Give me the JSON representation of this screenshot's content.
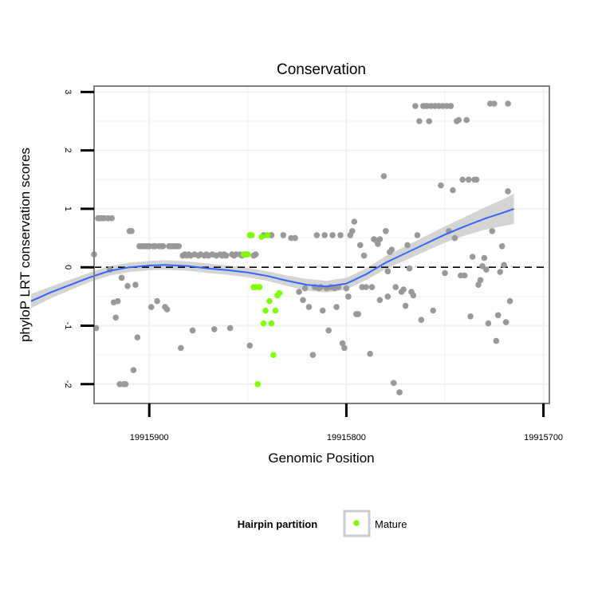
{
  "chart_data": {
    "type": "scatter",
    "title": "Conservation",
    "xlabel": "Genomic Position",
    "ylabel": "phyloP LRT conservation scores",
    "xlim": [
      19915928,
      19915697
    ],
    "ylim": [
      -2.33,
      3.1
    ],
    "x_ticks": [
      19915900,
      19915800,
      19915700
    ],
    "x_tick_labels": [
      "19915900",
      "19915800",
      "19915700"
    ],
    "y_ticks": [
      -2,
      -1,
      0,
      1,
      2,
      3
    ],
    "y_tick_labels": [
      "-2",
      "-1",
      "0",
      "1",
      "2",
      "3"
    ],
    "reference_line": {
      "y": 0,
      "style": "dashed"
    },
    "colors": {
      "points": "#999999",
      "mature": "#7fff00",
      "smooth": "#3366ff",
      "ribbon": "#cccccc",
      "grid": "#f0f0f0"
    },
    "legend": {
      "title": "Hairpin partition",
      "entries": [
        {
          "label": "Mature",
          "color": "#7fff00"
        }
      ]
    },
    "series": [
      {
        "name": "All",
        "points": [
          [
            19915961,
            -2.0
          ],
          [
            19915959,
            -0.25
          ],
          [
            19915958,
            -0.4
          ],
          [
            19915957,
            -1.38
          ],
          [
            19915956,
            -1.88
          ],
          [
            19915955,
            -0.88
          ],
          [
            19915954,
            -1.06
          ],
          [
            19915953,
            -1.65
          ],
          [
            19915952,
            0.42
          ],
          [
            19915951,
            -0.5
          ],
          [
            19915950,
            -1.62
          ],
          [
            19915949,
            0.42
          ],
          [
            19915948,
            -0.52
          ],
          [
            19915947,
            0.42
          ],
          [
            19915946,
            -0.58
          ],
          [
            19915946,
            0.42
          ],
          [
            19915945,
            0.22
          ],
          [
            19915944,
            0.22
          ],
          [
            19915942,
            0.22
          ],
          [
            19915941,
            0.2
          ],
          [
            19915939,
            0.22
          ],
          [
            19915937,
            0.2
          ],
          [
            19915936,
            0.22
          ],
          [
            19915934,
            0.22
          ],
          [
            19915932,
            0.22
          ],
          [
            19915931,
            0.2
          ],
          [
            19915930,
            0.22
          ],
          [
            19915928,
            0.22
          ],
          [
            19915927,
            -1.04
          ],
          [
            19915926,
            0.84
          ],
          [
            19915925,
            0.84
          ],
          [
            19915924,
            0.84
          ],
          [
            19915923,
            0.84
          ],
          [
            19915921,
            0.84
          ],
          [
            19915920,
            -0.04
          ],
          [
            19915919,
            0.84
          ],
          [
            19915918,
            -0.6
          ],
          [
            19915917,
            -0.86
          ],
          [
            19915916,
            -0.58
          ],
          [
            19915915,
            -2.0
          ],
          [
            19915914,
            -0.18
          ],
          [
            19915913,
            -2.0
          ],
          [
            19915912,
            -2.0
          ],
          [
            19915911,
            -0.32
          ],
          [
            19915910,
            0.62
          ],
          [
            19915909,
            0.62
          ],
          [
            19915908,
            -1.76
          ],
          [
            19915907,
            -0.3
          ],
          [
            19915906,
            -1.2
          ],
          [
            19915905,
            0.36
          ],
          [
            19915904,
            0.36
          ],
          [
            19915903,
            0.36
          ],
          [
            19915902,
            0.36
          ],
          [
            19915901,
            0.36
          ],
          [
            19915900,
            0.36
          ],
          [
            19915899,
            -0.68
          ],
          [
            19915898,
            0.36
          ],
          [
            19915897,
            0.36
          ],
          [
            19915896,
            -0.58
          ],
          [
            19915895,
            0.36
          ],
          [
            19915894,
            0.36
          ],
          [
            19915893,
            0.36
          ],
          [
            19915892,
            -0.68
          ],
          [
            19915891,
            -0.72
          ],
          [
            19915890,
            0.36
          ],
          [
            19915889,
            0.36
          ],
          [
            19915888,
            0.36
          ],
          [
            19915887,
            0.36
          ],
          [
            19915886,
            0.36
          ],
          [
            19915885,
            0.36
          ],
          [
            19915884,
            -1.38
          ],
          [
            19915883,
            0.2
          ],
          [
            19915882,
            0.22
          ],
          [
            19915881,
            0.2
          ],
          [
            19915880,
            0.22
          ],
          [
            19915879,
            0.2
          ],
          [
            19915878,
            -1.08
          ],
          [
            19915877,
            0.22
          ],
          [
            19915875,
            0.2
          ],
          [
            19915874,
            0.22
          ],
          [
            19915872,
            0.2
          ],
          [
            19915871,
            0.22
          ],
          [
            19915870,
            0.2
          ],
          [
            19915868,
            0.22
          ],
          [
            19915867,
            -1.06
          ],
          [
            19915866,
            0.2
          ],
          [
            19915864,
            0.22
          ],
          [
            19915863,
            0.2
          ],
          [
            19915862,
            0.22
          ],
          [
            19915861,
            0.2
          ],
          [
            19915859,
            -1.04
          ],
          [
            19915858,
            0.22
          ],
          [
            19915857,
            0.2
          ],
          [
            19915856,
            0.22
          ],
          [
            19915854,
            0.22
          ],
          [
            19915853,
            0.2
          ],
          [
            19915851,
            0.22
          ],
          [
            19915849,
            -1.34
          ],
          [
            19915847,
            0.2
          ],
          [
            19915846,
            0.22
          ],
          [
            19915842,
            0.55
          ],
          [
            19915838,
            0.55
          ],
          [
            19915832,
            0.55
          ],
          [
            19915828,
            0.5
          ],
          [
            19915826,
            0.5
          ],
          [
            19915824,
            -0.42
          ],
          [
            19915822,
            -0.56
          ],
          [
            19915821,
            -0.36
          ],
          [
            19915819,
            -0.68
          ],
          [
            19915817,
            -1.5
          ],
          [
            19915816,
            -0.34
          ],
          [
            19915815,
            0.55
          ],
          [
            19915814,
            -0.36
          ],
          [
            19915813,
            -0.34
          ],
          [
            19915812,
            -0.74
          ],
          [
            19915811,
            0.55
          ],
          [
            19915810,
            -0.36
          ],
          [
            19915809,
            -1.08
          ],
          [
            19915808,
            -0.34
          ],
          [
            19915807,
            0.55
          ],
          [
            19915806,
            -0.36
          ],
          [
            19915805,
            -0.68
          ],
          [
            19915804,
            -0.34
          ],
          [
            19915803,
            0.55
          ],
          [
            19915802,
            -1.3
          ],
          [
            19915801,
            -1.38
          ],
          [
            19915800,
            -0.36
          ],
          [
            19915799,
            -0.5
          ],
          [
            19915798,
            0.55
          ],
          [
            19915797,
            0.62
          ],
          [
            19915796,
            0.78
          ],
          [
            19915795,
            -0.8
          ],
          [
            19915794,
            -0.8
          ],
          [
            19915793,
            0.38
          ],
          [
            19915792,
            -0.34
          ],
          [
            19915791,
            0.2
          ],
          [
            19915790,
            -0.34
          ],
          [
            19915788,
            -1.48
          ],
          [
            19915787,
            -0.34
          ],
          [
            19915786,
            0.48
          ],
          [
            19915785,
            0.46
          ],
          [
            19915784,
            0.4
          ],
          [
            19915783,
            0.48
          ],
          [
            19915783,
            -0.56
          ],
          [
            19915781,
            1.56
          ],
          [
            19915780,
            0.62
          ],
          [
            19915779,
            -0.5
          ],
          [
            19915779,
            -0.07
          ],
          [
            19915778,
            0.26
          ],
          [
            19915777,
            0.3
          ],
          [
            19915776,
            -1.98
          ],
          [
            19915775,
            -0.34
          ],
          [
            19915773,
            -2.14
          ],
          [
            19915772,
            -0.42
          ],
          [
            19915771,
            -0.38
          ],
          [
            19915770,
            -0.66
          ],
          [
            19915769,
            0.38
          ],
          [
            19915768,
            -0.02
          ],
          [
            19915767,
            -0.42
          ],
          [
            19915766,
            -0.48
          ],
          [
            19915765,
            2.76
          ],
          [
            19915764,
            0.55
          ],
          [
            19915763,
            2.5
          ],
          [
            19915762,
            -0.9
          ],
          [
            19915761,
            2.76
          ],
          [
            19915760,
            2.76
          ],
          [
            19915759,
            2.76
          ],
          [
            19915758,
            2.5
          ],
          [
            19915757,
            2.76
          ],
          [
            19915756,
            -0.74
          ],
          [
            19915755,
            2.76
          ],
          [
            19915753,
            2.76
          ],
          [
            19915752,
            1.4
          ],
          [
            19915751,
            2.76
          ],
          [
            19915750,
            -0.1
          ],
          [
            19915749,
            2.76
          ],
          [
            19915748,
            0.62
          ],
          [
            19915747,
            2.76
          ],
          [
            19915746,
            1.32
          ],
          [
            19915745,
            0.5
          ],
          [
            19915744,
            2.5
          ],
          [
            19915743,
            2.52
          ],
          [
            19915742,
            -0.14
          ],
          [
            19915741,
            1.5
          ],
          [
            19915740,
            -0.14
          ],
          [
            19915739,
            2.52
          ],
          [
            19915738,
            1.5
          ],
          [
            19915737,
            -0.84
          ],
          [
            19915736,
            0.18
          ],
          [
            19915735,
            1.5
          ],
          [
            19915734,
            1.5
          ],
          [
            19915733,
            -0.3
          ],
          [
            19915732,
            -0.22
          ],
          [
            19915731,
            0.02
          ],
          [
            19915730,
            0.16
          ],
          [
            19915729,
            -0.04
          ],
          [
            19915728,
            -0.96
          ],
          [
            19915727,
            2.8
          ],
          [
            19915726,
            0.62
          ],
          [
            19915725,
            2.8
          ],
          [
            19915724,
            -1.26
          ],
          [
            19915723,
            -0.82
          ],
          [
            19915722,
            -0.08
          ],
          [
            19915721,
            0.36
          ],
          [
            19915720,
            0.04
          ],
          [
            19915719,
            -0.94
          ],
          [
            19915718,
            1.3
          ],
          [
            19915718,
            2.8
          ],
          [
            19915717,
            -0.58
          ]
        ]
      },
      {
        "name": "Mature",
        "points": [
          [
            19915852,
            0.22
          ],
          [
            19915850,
            0.22
          ],
          [
            19915849,
            0.55
          ],
          [
            19915848,
            0.55
          ],
          [
            19915847,
            -0.34
          ],
          [
            19915846,
            -0.34
          ],
          [
            19915845,
            -2.0
          ],
          [
            19915844,
            -0.34
          ],
          [
            19915843,
            0.52
          ],
          [
            19915842,
            -0.96
          ],
          [
            19915841,
            -0.74
          ],
          [
            19915840,
            0.55
          ],
          [
            19915839,
            -0.58
          ],
          [
            19915838,
            -0.96
          ],
          [
            19915837,
            -1.5
          ],
          [
            19915836,
            -0.74
          ],
          [
            19915835,
            -0.48
          ],
          [
            19915834,
            -0.44
          ]
        ]
      }
    ],
    "smooth": {
      "x": [
        19915960,
        19915950,
        19915940,
        19915930,
        19915920,
        19915910,
        19915900,
        19915892,
        19915880,
        19915870,
        19915860,
        19915850,
        19915840,
        19915830,
        19915820,
        19915810,
        19915800,
        19915790,
        19915780,
        19915770,
        19915760,
        19915750,
        19915740,
        19915730,
        19915720,
        19915715
      ],
      "y": [
        -0.58,
        -0.43,
        -0.3,
        -0.17,
        -0.06,
        0.0,
        0.03,
        0.04,
        0.02,
        -0.02,
        -0.05,
        -0.09,
        -0.15,
        -0.23,
        -0.3,
        -0.33,
        -0.28,
        -0.12,
        0.08,
        0.24,
        0.4,
        0.56,
        0.7,
        0.83,
        0.94,
        1.0
      ],
      "se": [
        0.12,
        0.1,
        0.09,
        0.08,
        0.08,
        0.08,
        0.08,
        0.08,
        0.08,
        0.08,
        0.08,
        0.08,
        0.08,
        0.09,
        0.1,
        0.1,
        0.1,
        0.1,
        0.11,
        0.12,
        0.13,
        0.14,
        0.16,
        0.19,
        0.23,
        0.26
      ]
    }
  }
}
